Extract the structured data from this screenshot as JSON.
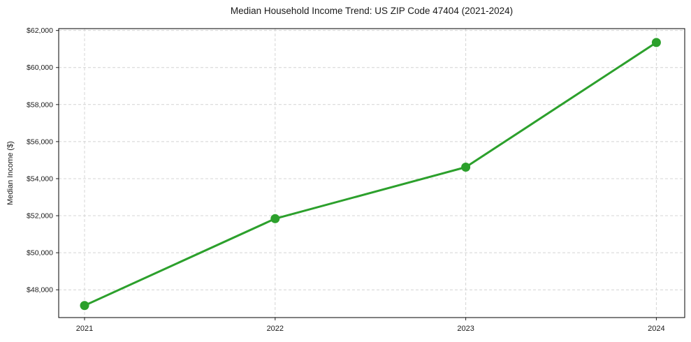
{
  "figure": {
    "background": "#ffffff"
  },
  "chart_data": {
    "type": "line",
    "title": "Median Household Income Trend: US ZIP Code 47404 (2021-2024)",
    "xlabel": "",
    "ylabel": "Median Income ($)",
    "categories": [
      "2021",
      "2022",
      "2023",
      "2024"
    ],
    "series": [
      {
        "name": "Median Household Income",
        "values": [
          47150,
          51840,
          54620,
          61350
        ]
      }
    ],
    "ylim": [
      46500,
      62100
    ],
    "y_ticks": [
      48000,
      50000,
      52000,
      54000,
      56000,
      58000,
      60000,
      62000
    ],
    "y_tick_labels": [
      "$48,000",
      "$50,000",
      "$52,000",
      "$54,000",
      "$56,000",
      "$58,000",
      "$60,000",
      "$62,000"
    ],
    "x_tick_labels": [
      "2021",
      "2022",
      "2023",
      "2024"
    ],
    "grid": true,
    "grid_style": "dashed",
    "legend_position": "none",
    "line_color": "#2ca02c",
    "marker": "circle",
    "grid_color": "#d4d4d4",
    "axis_color": "#000000",
    "text_color": "#1a1a1a"
  }
}
